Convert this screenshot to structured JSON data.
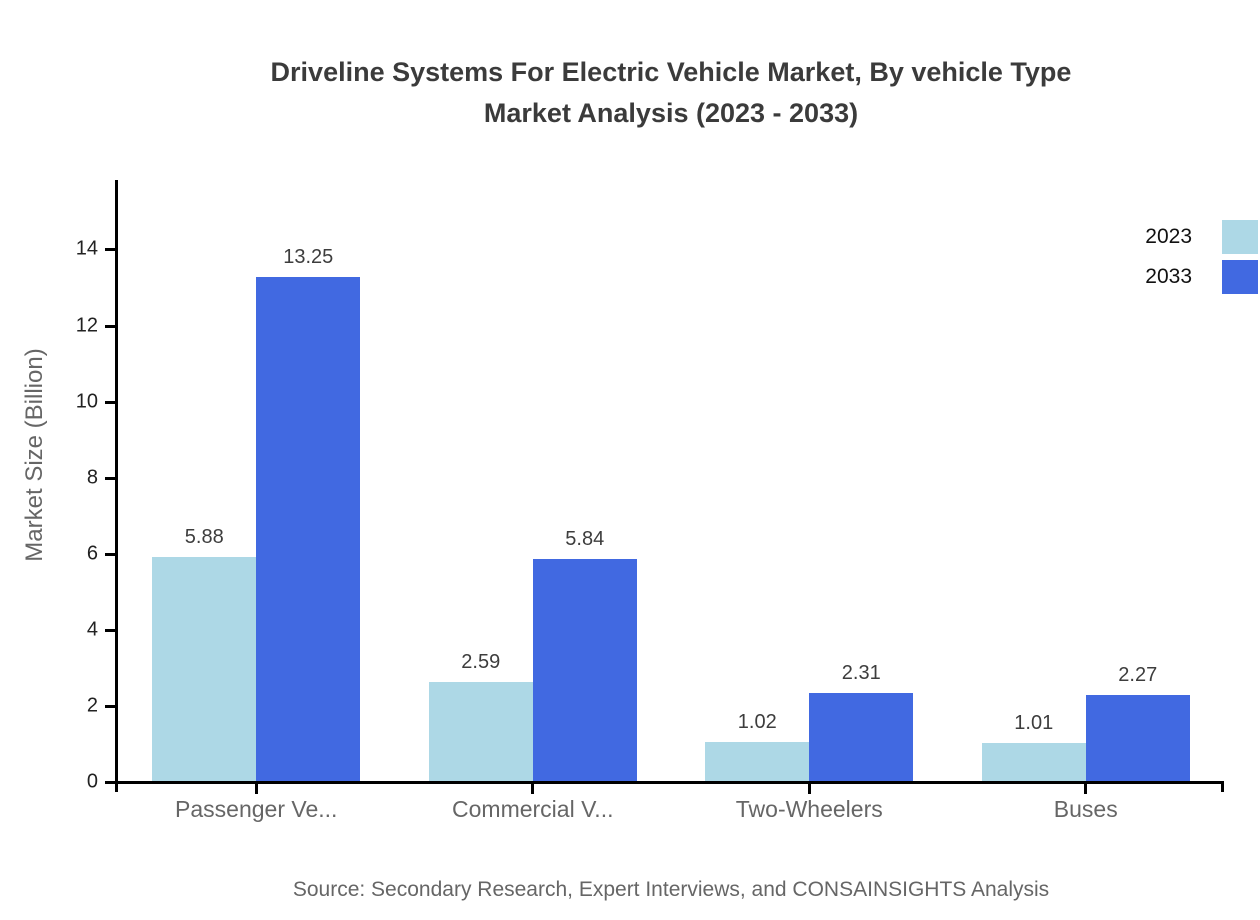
{
  "title": {
    "line1": "Driveline Systems For Electric Vehicle Market, By vehicle Type",
    "line2": "Market Analysis (2023 - 2033)"
  },
  "y_axis": {
    "label": "Market Size (Billion)"
  },
  "source": "Source: Secondary Research, Expert Interviews, and CONSAINSIGHTS Analysis",
  "colors": {
    "series_2023": "#ADD8E6",
    "series_2033": "#4169E1",
    "axis": "#000000",
    "text_muted": "#666666"
  },
  "chart_data": {
    "type": "bar",
    "categories": [
      "Passenger Ve...",
      "Commercial V...",
      "Two-Wheelers",
      "Buses"
    ],
    "series": [
      {
        "name": "2023",
        "color": "#ADD8E6",
        "values": [
          5.88,
          2.59,
          1.02,
          1.01
        ]
      },
      {
        "name": "2033",
        "color": "#4169E1",
        "values": [
          13.25,
          5.84,
          2.31,
          2.27
        ]
      }
    ],
    "title": "Driveline Systems For Electric Vehicle Market, By vehicle Type Market Analysis (2023 - 2033)",
    "xlabel": "",
    "ylabel": "Market Size (Billion)",
    "ylim": [
      0,
      15.8
    ],
    "yticks": [
      0,
      2,
      4,
      6,
      8,
      10,
      12,
      14
    ],
    "grid": false,
    "legend_position": "top-right",
    "value_labels": true
  }
}
